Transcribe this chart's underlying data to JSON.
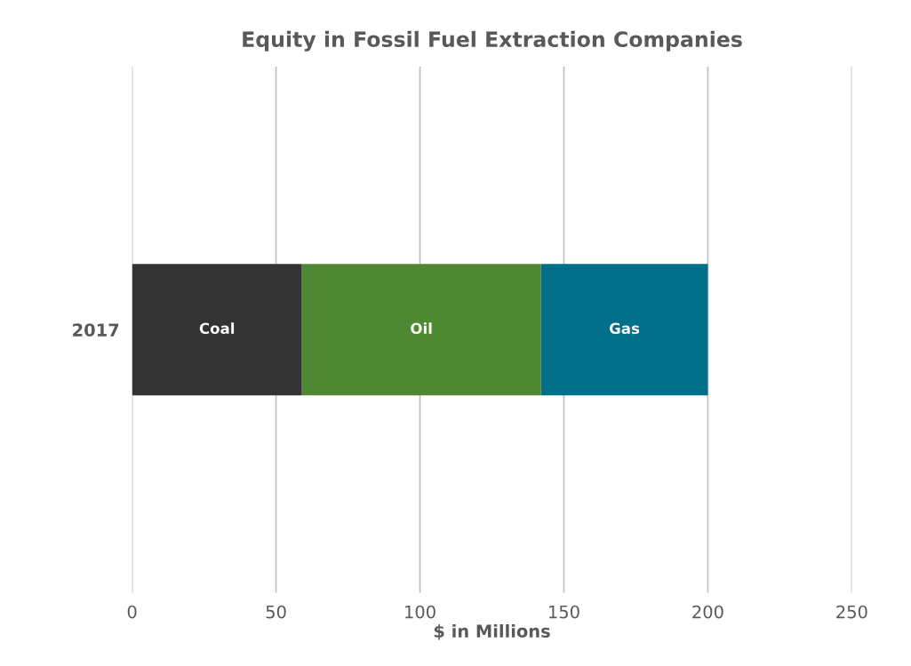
{
  "chart_data": {
    "type": "bar",
    "orientation": "horizontal",
    "stacked": true,
    "title": "Equity in Fossil Fuel Extraction Companies",
    "xlabel": "$ in Millions",
    "categories": [
      "2017"
    ],
    "series": [
      {
        "name": "Coal",
        "color": "#333333",
        "values": [
          59
        ]
      },
      {
        "name": "Oil",
        "color": "#4e8833",
        "values": [
          83
        ]
      },
      {
        "name": "Gas",
        "color": "#00708a",
        "values": [
          58
        ]
      }
    ],
    "xlim": [
      0,
      250
    ],
    "xticks": [
      0,
      50,
      100,
      150,
      200,
      250
    ],
    "grid": "x",
    "legend": false
  }
}
